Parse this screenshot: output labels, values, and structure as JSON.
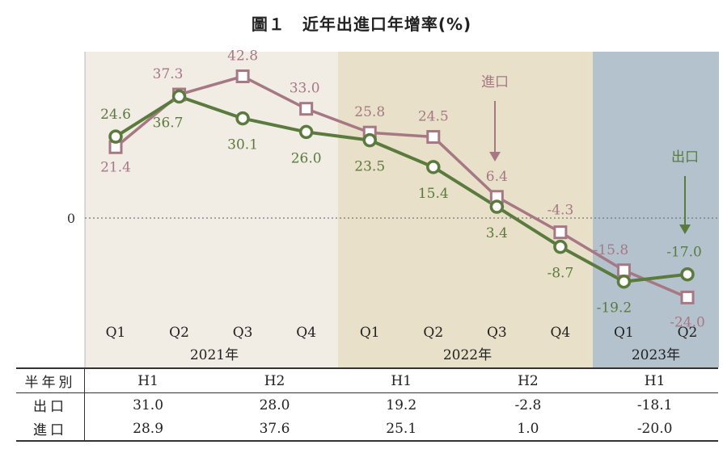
{
  "title": "圖１　近年出進口年增率(%)",
  "chart_data": {
    "type": "line",
    "categories": [
      "Q1",
      "Q2",
      "Q3",
      "Q4",
      "Q1",
      "Q2",
      "Q3",
      "Q4",
      "Q1",
      "Q2"
    ],
    "years": [
      {
        "label": "2021年",
        "span": [
          0,
          3
        ],
        "bg": "#f1ede4"
      },
      {
        "label": "2022年",
        "span": [
          4,
          7
        ],
        "bg": "#e8e0c8"
      },
      {
        "label": "2023年",
        "span": [
          8,
          9
        ],
        "bg": "#b4c2ce"
      }
    ],
    "zero_label": "0",
    "ylim": [
      -27,
      50
    ],
    "series": [
      {
        "name": "進口",
        "color": "#a57884",
        "marker": "square",
        "values": [
          21.4,
          37.3,
          42.8,
          33.0,
          25.8,
          24.5,
          6.4,
          -4.3,
          -15.8,
          -24.0
        ],
        "labels": [
          "21.4",
          "37.3",
          "42.8",
          "33.0",
          "25.8",
          "24.5",
          "6.4",
          "-4.3",
          "-15.8",
          "-24.0"
        ]
      },
      {
        "name": "出口",
        "color": "#5b7a3e",
        "marker": "circle",
        "values": [
          24.6,
          36.7,
          30.1,
          26.0,
          23.5,
          15.4,
          3.4,
          -8.7,
          -19.2,
          -17.0
        ],
        "labels": [
          "24.6",
          "36.7",
          "30.1",
          "26.0",
          "23.5",
          "15.4",
          "3.4",
          "-8.7",
          "-19.2",
          "-17.0"
        ]
      }
    ],
    "annotations": [
      {
        "text": "進口",
        "color": "#a57884"
      },
      {
        "text": "出口",
        "color": "#5b7a3e"
      }
    ]
  },
  "table": {
    "header_label": "半年別",
    "periods": [
      "H1",
      "H2",
      "H1",
      "H2",
      "H1"
    ],
    "rows": [
      {
        "label": "出口",
        "values": [
          "31.0",
          "28.0",
          "19.2",
          "-2.8",
          "-18.1"
        ]
      },
      {
        "label": "進口",
        "values": [
          "28.9",
          "37.6",
          "25.1",
          "1.0",
          "-20.0"
        ]
      }
    ]
  }
}
